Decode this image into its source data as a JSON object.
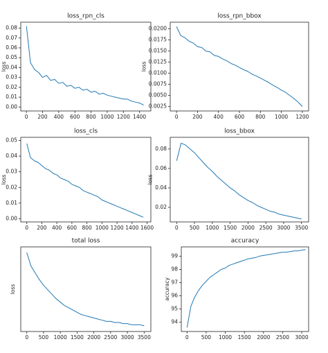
{
  "chart_data": [
    {
      "type": "line",
      "title": "loss_rpn_cls",
      "ylabel": "loss",
      "color": "#1f77b4",
      "x": [
        0,
        50,
        100,
        150,
        200,
        250,
        300,
        350,
        400,
        450,
        500,
        550,
        600,
        650,
        700,
        750,
        800,
        850,
        900,
        950,
        1000,
        1050,
        1100,
        1150,
        1200,
        1250,
        1300,
        1350,
        1400,
        1450
      ],
      "values": [
        0.082,
        0.045,
        0.038,
        0.035,
        0.03,
        0.032,
        0.027,
        0.028,
        0.024,
        0.025,
        0.021,
        0.022,
        0.019,
        0.02,
        0.017,
        0.018,
        0.015,
        0.016,
        0.013,
        0.014,
        0.012,
        0.011,
        0.01,
        0.009,
        0.008,
        0.008,
        0.006,
        0.005,
        0.004,
        0.002
      ],
      "xlim": [
        -70,
        1540
      ],
      "xticks": [
        0,
        200,
        400,
        600,
        800,
        1000,
        1200,
        1400
      ],
      "ylim": [
        -0.004,
        0.086
      ],
      "yticks": [
        {
          "value": 0,
          "label": "0.00"
        },
        0.01,
        0.02,
        0.03,
        0.04,
        0.05,
        0.06,
        0.07,
        0.08
      ]
    },
    {
      "type": "line",
      "title": "loss_rpn_bbox",
      "ylabel": "loss",
      "color": "#1f77b4",
      "x": [
        0,
        40,
        80,
        120,
        160,
        200,
        240,
        280,
        320,
        360,
        400,
        440,
        480,
        520,
        560,
        600,
        640,
        680,
        720,
        760,
        800,
        840,
        880,
        920,
        960,
        1000,
        1040,
        1080,
        1120,
        1160,
        1200
      ],
      "values": [
        0.0205,
        0.0185,
        0.018,
        0.0172,
        0.0168,
        0.016,
        0.0158,
        0.015,
        0.0148,
        0.014,
        0.0138,
        0.0132,
        0.0128,
        0.0122,
        0.0118,
        0.0113,
        0.0108,
        0.0104,
        0.0098,
        0.0094,
        0.0089,
        0.0084,
        0.0079,
        0.0073,
        0.0068,
        0.0062,
        0.0057,
        0.005,
        0.0043,
        0.0035,
        0.0025
      ],
      "xlim": [
        -60,
        1260
      ],
      "xticks": [
        0,
        200,
        400,
        600,
        800,
        1000,
        1200
      ],
      "ylim": [
        0.0015,
        0.0215
      ],
      "yticks": [
        0.0025,
        {
          "value": 0.005,
          "label": "0.0050"
        },
        0.0075,
        {
          "value": 0.01,
          "label": "0.0100"
        },
        0.0125,
        {
          "value": 0.015,
          "label": "0.0150"
        },
        0.0175,
        {
          "value": 0.02,
          "label": "0.0200"
        }
      ]
    },
    {
      "type": "line",
      "title": "loss_cls",
      "ylabel": "loss",
      "color": "#1f77b4",
      "x": [
        0,
        50,
        100,
        150,
        200,
        250,
        300,
        350,
        400,
        450,
        500,
        550,
        600,
        650,
        700,
        750,
        800,
        850,
        900,
        950,
        1000,
        1050,
        1100,
        1150,
        1200,
        1250,
        1300,
        1350,
        1400,
        1450,
        1500,
        1550
      ],
      "values": [
        0.048,
        0.039,
        0.037,
        0.036,
        0.034,
        0.032,
        0.031,
        0.029,
        0.028,
        0.026,
        0.025,
        0.024,
        0.022,
        0.021,
        0.02,
        0.018,
        0.017,
        0.016,
        0.015,
        0.014,
        0.012,
        0.011,
        0.01,
        0.009,
        0.008,
        0.007,
        0.006,
        0.005,
        0.004,
        0.003,
        0.002,
        0.001
      ],
      "xlim": [
        -80,
        1650
      ],
      "xticks": [
        0,
        200,
        400,
        600,
        800,
        1000,
        1200,
        1400,
        1600
      ],
      "ylim": [
        -0.002,
        0.052
      ],
      "yticks": [
        {
          "value": 0,
          "label": "0.00"
        },
        0.01,
        0.02,
        0.03,
        0.04,
        0.05
      ]
    },
    {
      "type": "line",
      "title": "loss_bbox",
      "ylabel": "loss",
      "color": "#1f77b4",
      "x": [
        0,
        125,
        250,
        375,
        500,
        625,
        750,
        875,
        1000,
        1125,
        1250,
        1375,
        1500,
        1625,
        1750,
        1875,
        2000,
        2125,
        2250,
        2375,
        2500,
        2625,
        2750,
        2875,
        3000,
        3125,
        3250,
        3375,
        3500
      ],
      "values": [
        0.068,
        0.086,
        0.084,
        0.08,
        0.076,
        0.071,
        0.066,
        0.061,
        0.057,
        0.052,
        0.048,
        0.044,
        0.04,
        0.037,
        0.033,
        0.03,
        0.027,
        0.025,
        0.022,
        0.02,
        0.018,
        0.016,
        0.015,
        0.013,
        0.012,
        0.011,
        0.01,
        0.009,
        0.008
      ],
      "xlim": [
        -180,
        3700
      ],
      "xticks": [
        0,
        500,
        1000,
        1500,
        2000,
        2500,
        3000,
        3500
      ],
      "ylim": [
        0.005,
        0.092
      ],
      "yticks": [
        0.02,
        0.04,
        0.06,
        0.08
      ]
    },
    {
      "type": "line",
      "title": "total loss",
      "ylabel": "loss",
      "color": "#1f77b4",
      "x": [
        0,
        125,
        250,
        375,
        500,
        625,
        750,
        875,
        1000,
        1125,
        1250,
        1375,
        1500,
        1625,
        1750,
        1875,
        2000,
        2125,
        2250,
        2375,
        2500,
        2625,
        2750,
        2875,
        3000,
        3125,
        3250,
        3375,
        3500
      ],
      "values": [
        0.7,
        0.58,
        0.52,
        0.46,
        0.41,
        0.37,
        0.33,
        0.29,
        0.26,
        0.23,
        0.21,
        0.19,
        0.17,
        0.15,
        0.14,
        0.13,
        0.12,
        0.11,
        0.1,
        0.09,
        0.09,
        0.08,
        0.08,
        0.07,
        0.07,
        0.06,
        0.06,
        0.06,
        0.05
      ],
      "xlim": [
        -180,
        3700
      ],
      "xticks": [
        0,
        500,
        1000,
        1500,
        2000,
        2500,
        3000,
        3500
      ],
      "ylim": [
        0.0,
        0.75
      ]
    },
    {
      "type": "line",
      "title": "accuracy",
      "ylabel": "accuracy",
      "color": "#1f77b4",
      "x": [
        0,
        100,
        200,
        300,
        400,
        500,
        600,
        700,
        800,
        900,
        1000,
        1100,
        1200,
        1300,
        1400,
        1500,
        1600,
        1700,
        1800,
        1900,
        2000,
        2100,
        2200,
        2300,
        2400,
        2500,
        2600,
        2700,
        2800,
        2900,
        3000,
        3100
      ],
      "values": [
        93.6,
        95.2,
        95.9,
        96.4,
        96.8,
        97.1,
        97.4,
        97.6,
        97.8,
        98.0,
        98.1,
        98.3,
        98.4,
        98.5,
        98.6,
        98.7,
        98.8,
        98.85,
        98.9,
        99.0,
        99.05,
        99.1,
        99.15,
        99.2,
        99.25,
        99.3,
        99.3,
        99.35,
        99.4,
        99.4,
        99.45,
        99.5
      ],
      "xlim": [
        -150,
        3180
      ],
      "xticks": [
        0,
        500,
        1000,
        1500,
        2000,
        2500,
        3000
      ],
      "ylim": [
        93.3,
        99.7
      ],
      "yticks": [
        94,
        95,
        96,
        97,
        98,
        99
      ]
    }
  ]
}
